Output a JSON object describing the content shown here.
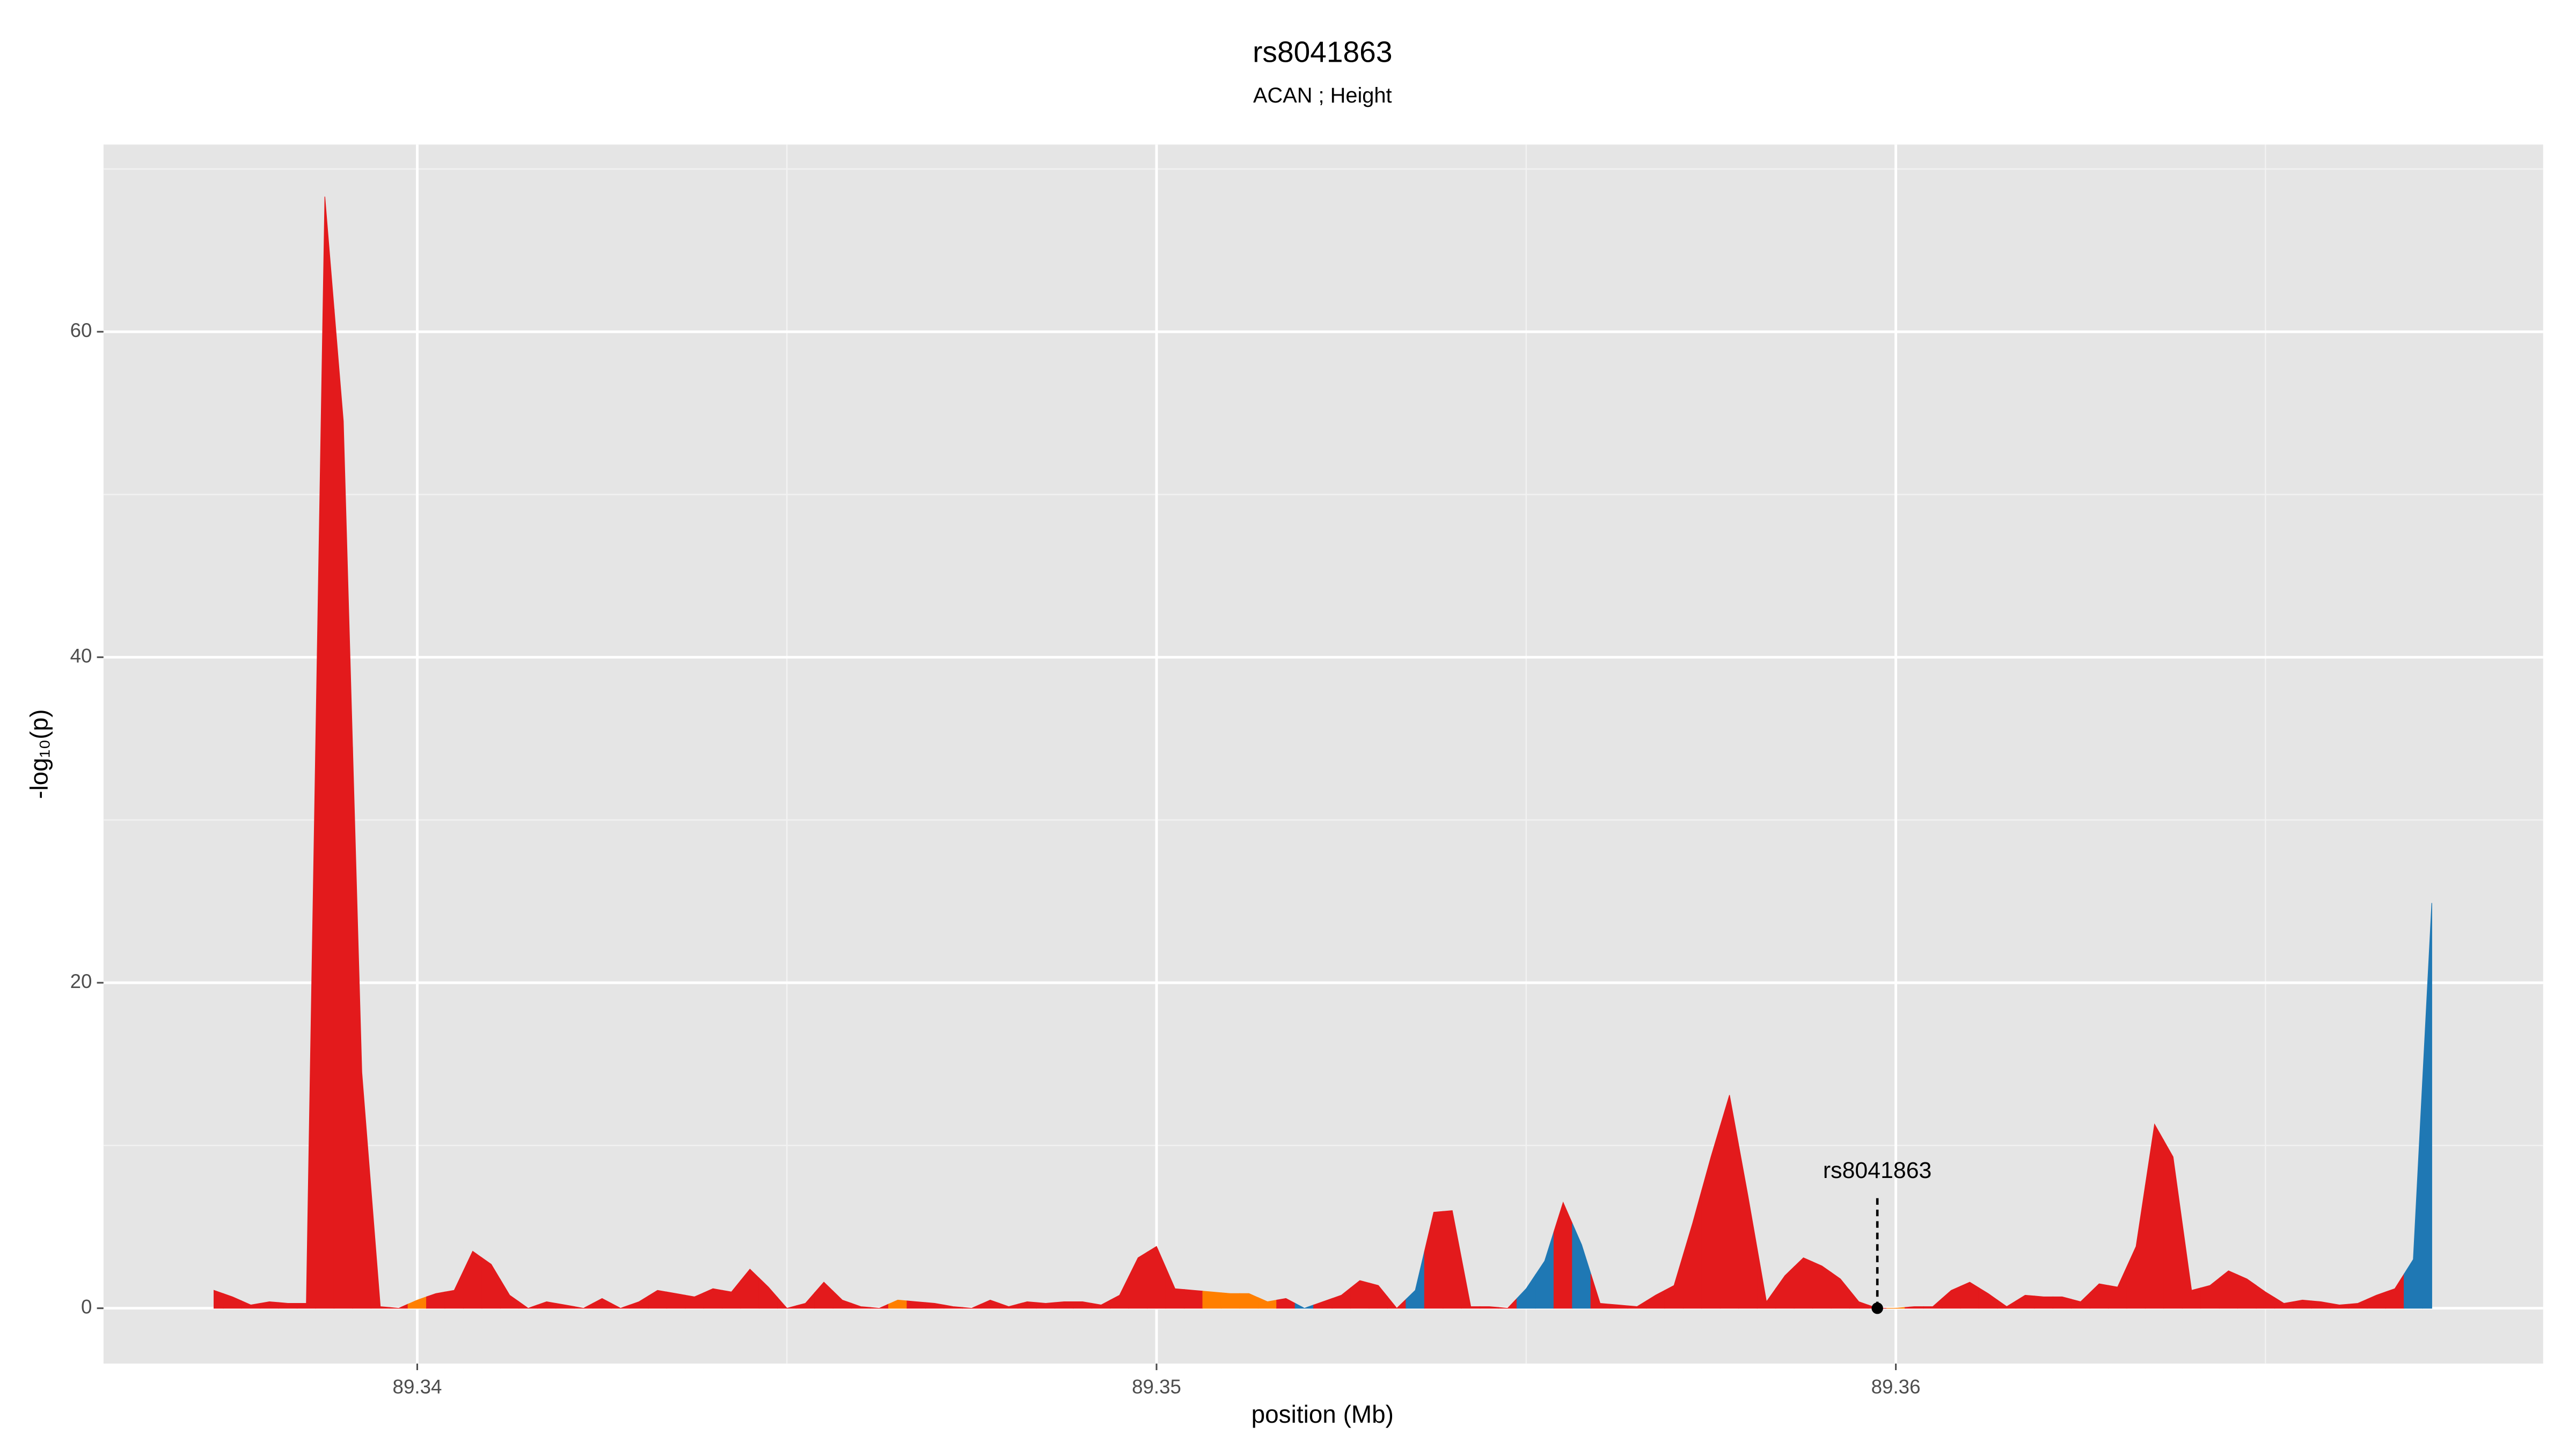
{
  "chart_data": {
    "type": "area",
    "title": "rs8041863",
    "subtitle": "ACAN ; Height",
    "x_label": "position (Mb)",
    "y_label": "-log₁₀(p)",
    "xlim": [
      89.335756,
      89.368756
    ],
    "ylim": [
      -3.4,
      71.5
    ],
    "xticks": [
      89.34,
      89.35,
      89.36
    ],
    "yticks": [
      0,
      20,
      40,
      60
    ],
    "x_minor_ticks": [
      89.345,
      89.355,
      89.365
    ],
    "y_minor_ticks": [
      10,
      30,
      50,
      70
    ],
    "grid": true,
    "background": "#e5e5e5",
    "x": [
      89.33725,
      89.3375,
      89.33775,
      89.338,
      89.33825,
      89.3385,
      89.33875,
      89.339,
      89.33925,
      89.3395,
      89.33975,
      89.34,
      89.34025,
      89.3405,
      89.34075,
      89.341,
      89.34125,
      89.3415,
      89.34175,
      89.342,
      89.34225,
      89.3425,
      89.34275,
      89.343,
      89.34325,
      89.3435,
      89.34375,
      89.344,
      89.34425,
      89.3445,
      89.34475,
      89.345,
      89.34525,
      89.3455,
      89.34575,
      89.346,
      89.34625,
      89.3465,
      89.34675,
      89.347,
      89.34725,
      89.3475,
      89.34775,
      89.348,
      89.34825,
      89.3485,
      89.34875,
      89.349,
      89.34925,
      89.3495,
      89.34975,
      89.35,
      89.35025,
      89.3505,
      89.35075,
      89.351,
      89.35125,
      89.3515,
      89.35175,
      89.352,
      89.35225,
      89.3525,
      89.35275,
      89.353,
      89.35325,
      89.3535,
      89.35375,
      89.354,
      89.35425,
      89.3545,
      89.35475,
      89.355,
      89.35525,
      89.3555,
      89.35575,
      89.356,
      89.35625,
      89.3565,
      89.35675,
      89.357,
      89.35725,
      89.3575,
      89.35775,
      89.358,
      89.35825,
      89.3585,
      89.35875,
      89.359,
      89.35925,
      89.3595,
      89.35975,
      89.36,
      89.36025,
      89.3605,
      89.36075,
      89.361,
      89.36125,
      89.3615,
      89.36175,
      89.362,
      89.36225,
      89.3625,
      89.36275,
      89.363,
      89.36325,
      89.3635,
      89.36375,
      89.364,
      89.36425,
      89.3645,
      89.36475,
      89.365,
      89.36525,
      89.3655,
      89.36575,
      89.366,
      89.36625,
      89.3665,
      89.36675,
      89.367,
      89.36725
    ],
    "values": [
      1.1,
      0.7,
      0.2,
      0.4,
      0.3,
      0.3,
      68.3,
      54.5,
      14.5,
      0.1,
      0,
      0.5,
      0.9,
      1.1,
      3.5,
      2.7,
      0.8,
      0,
      0.4,
      0.2,
      0,
      0.6,
      0,
      0.4,
      1.1,
      0.9,
      0.7,
      1.2,
      1.0,
      2.4,
      1.3,
      0,
      0.3,
      1.6,
      0.5,
      0.1,
      0,
      0.5,
      0.4,
      0.3,
      0.1,
      0,
      0.5,
      0.1,
      0.4,
      0.3,
      0.4,
      0.4,
      0.2,
      0.8,
      3.1,
      3.8,
      1.2,
      1.1,
      1.0,
      0.9,
      0.9,
      0.4,
      0.6,
      0,
      0.4,
      0.8,
      1.7,
      1.4,
      0,
      1.1,
      5.9,
      6.0,
      0.1,
      0.1,
      0,
      1.2,
      2.9,
      6.5,
      3.9,
      0.3,
      0.2,
      0.1,
      0.8,
      1.4,
      5.2,
      9.3,
      13.1,
      6.9,
      0.4,
      2.0,
      3.1,
      2.6,
      1.8,
      0.4,
      0,
      0,
      0.1,
      0.1,
      1.1,
      1.6,
      0.9,
      0.1,
      0.8,
      0.7,
      0.7,
      0.4,
      1.5,
      1.3,
      3.8,
      11.3,
      9.3,
      1.1,
      1.4,
      2.3,
      1.8,
      1.0,
      0.3,
      0.5,
      0.4,
      0.2,
      0.3,
      0.8,
      1.2,
      3.0,
      24.9
    ],
    "colors": [
      "#e31a1c",
      "#e31a1c",
      "#e31a1c",
      "#e31a1c",
      "#e31a1c",
      "#e31a1c",
      "#e31a1c",
      "#e31a1c",
      "#e31a1c",
      "#e31a1c",
      "#e31a1c",
      "#ff7f00",
      "#e31a1c",
      "#e31a1c",
      "#e31a1c",
      "#e31a1c",
      "#e31a1c",
      "#e31a1c",
      "#e31a1c",
      "#e31a1c",
      "#e31a1c",
      "#e31a1c",
      "#e31a1c",
      "#e31a1c",
      "#e31a1c",
      "#e31a1c",
      "#e31a1c",
      "#e31a1c",
      "#e31a1c",
      "#e31a1c",
      "#e31a1c",
      "#e31a1c",
      "#e31a1c",
      "#e31a1c",
      "#e31a1c",
      "#e31a1c",
      "#e31a1c",
      "#ff7f00",
      "#e31a1c",
      "#e31a1c",
      "#e31a1c",
      "#e31a1c",
      "#e31a1c",
      "#e31a1c",
      "#e31a1c",
      "#e31a1c",
      "#e31a1c",
      "#e31a1c",
      "#e31a1c",
      "#e31a1c",
      "#e31a1c",
      "#e31a1c",
      "#e31a1c",
      "#e31a1c",
      "#ff7f00",
      "#ff7f00",
      "#ff7f00",
      "#ff7f00",
      "#e31a1c",
      "#1f78b4",
      "#e31a1c",
      "#e31a1c",
      "#e31a1c",
      "#e31a1c",
      "#e31a1c",
      "#1f78b4",
      "#e31a1c",
      "#e31a1c",
      "#e31a1c",
      "#e31a1c",
      "#e31a1c",
      "#1f78b4",
      "#1f78b4",
      "#e31a1c",
      "#1f78b4",
      "#e31a1c",
      "#e31a1c",
      "#e31a1c",
      "#e31a1c",
      "#e31a1c",
      "#e31a1c",
      "#e31a1c",
      "#e31a1c",
      "#e31a1c",
      "#e31a1c",
      "#e31a1c",
      "#e31a1c",
      "#e31a1c",
      "#e31a1c",
      "#e31a1c",
      "#e31a1c",
      "#ff7f00",
      "#e31a1c",
      "#e31a1c",
      "#e31a1c",
      "#e31a1c",
      "#e31a1c",
      "#e31a1c",
      "#e31a1c",
      "#e31a1c",
      "#e31a1c",
      "#e31a1c",
      "#e31a1c",
      "#e31a1c",
      "#e31a1c",
      "#e31a1c",
      "#e31a1c",
      "#e31a1c",
      "#e31a1c",
      "#e31a1c",
      "#e31a1c",
      "#e31a1c",
      "#e31a1c",
      "#e31a1c",
      "#e31a1c",
      "#e31a1c",
      "#e31a1c",
      "#e31a1c",
      "#e31a1c",
      "#1f78b4",
      "#1f78b4"
    ],
    "annotation": {
      "label": "rs8041863",
      "x": 89.35975,
      "y": 0
    }
  }
}
